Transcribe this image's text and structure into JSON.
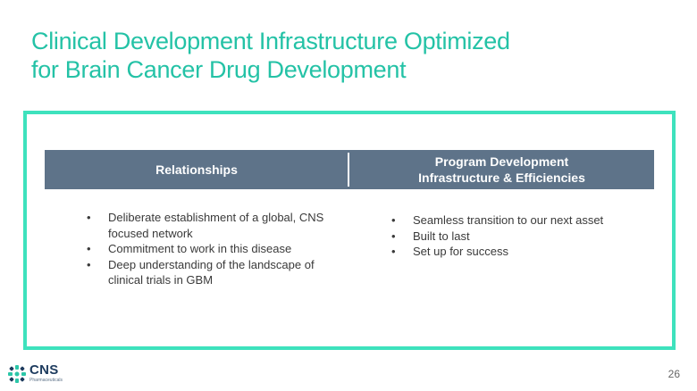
{
  "slide": {
    "title_line1": "Clinical Development Infrastructure Optimized",
    "title_line2": "for Brain Cancer Drug Development",
    "page_number": "26"
  },
  "table": {
    "left_header": "Relationships",
    "right_header_line1": "Program Development",
    "right_header_line2": "Infrastructure & Efficiencies",
    "left_items": [
      "Deliberate establishment of a global, CNS focused network",
      "Commitment to work in this disease",
      "Deep understanding of the landscape of clinical trials in GBM"
    ],
    "right_items": [
      "Seamless transition to our next asset",
      "Built to last",
      "Set up for success"
    ]
  },
  "logo": {
    "name": "CNS",
    "subtitle": "Pharmaceuticals"
  },
  "colors": {
    "title": "#24c2a6",
    "frame": "#3ee2bd",
    "header_bar": "#5e7389",
    "logo_navy": "#1d3b5e"
  }
}
